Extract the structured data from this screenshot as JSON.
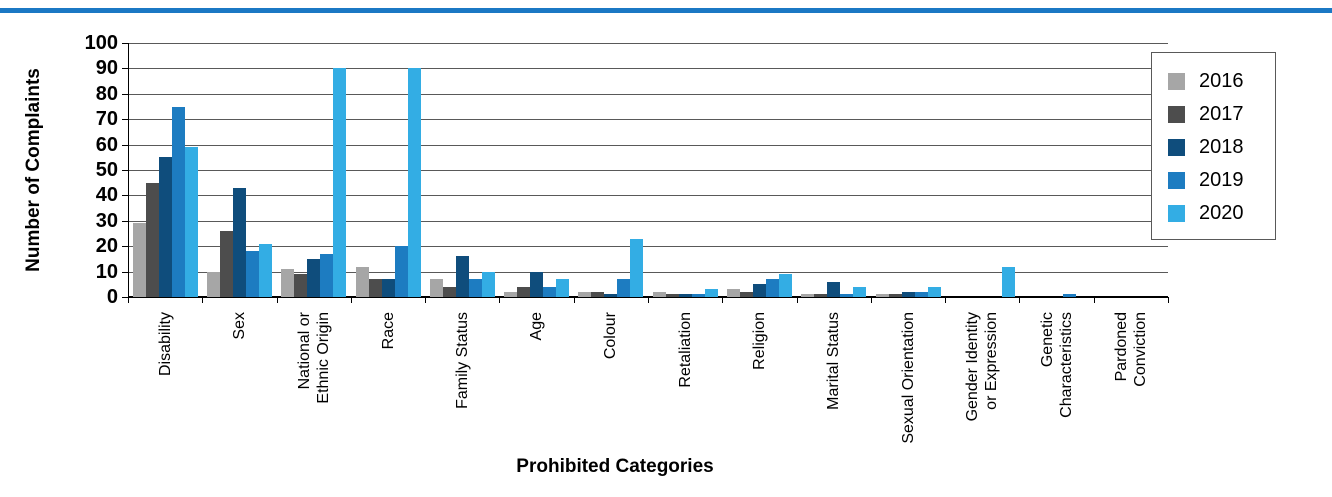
{
  "accent_bar": {
    "color": "#1b78c4"
  },
  "chart_data": {
    "type": "bar",
    "title": "",
    "xlabel": "Prohibited Categories",
    "ylabel": "Number of Complaints",
    "ylim": [
      0,
      100
    ],
    "ytick_step": 10,
    "grid": true,
    "legend_position": "top-right",
    "gridline_color": "#595959",
    "categories": [
      "Disability",
      "Sex",
      "National or\nEthnic Origin",
      "Race",
      "Family Status",
      "Age",
      "Colour",
      "Retaliation",
      "Religion",
      "Marital Status",
      "Sexual Orientation",
      "Gender Identity\nor Expression",
      "Genetic\nCharacteristics",
      "Pardoned\nConviction"
    ],
    "series": [
      {
        "name": "2016",
        "color": "#a6a6a6",
        "values": [
          29,
          10,
          11,
          12,
          7,
          2,
          2,
          2,
          3,
          1,
          1,
          0,
          0,
          0
        ]
      },
      {
        "name": "2017",
        "color": "#4d4d4d",
        "values": [
          45,
          26,
          9,
          7,
          4,
          4,
          2,
          1,
          2,
          1,
          1,
          0,
          0,
          0
        ]
      },
      {
        "name": "2018",
        "color": "#0f4d7c",
        "values": [
          55,
          43,
          15,
          7,
          16,
          10,
          1,
          1,
          5,
          6,
          2,
          0,
          0,
          0
        ]
      },
      {
        "name": "2019",
        "color": "#1d7cc1",
        "values": [
          75,
          18,
          17,
          20,
          7,
          4,
          7,
          1,
          7,
          1,
          2,
          0,
          1,
          0
        ]
      },
      {
        "name": "2020",
        "color": "#33ade4",
        "values": [
          59,
          21,
          90,
          90,
          10,
          7,
          23,
          3,
          9,
          4,
          4,
          12,
          0,
          0
        ]
      }
    ]
  }
}
